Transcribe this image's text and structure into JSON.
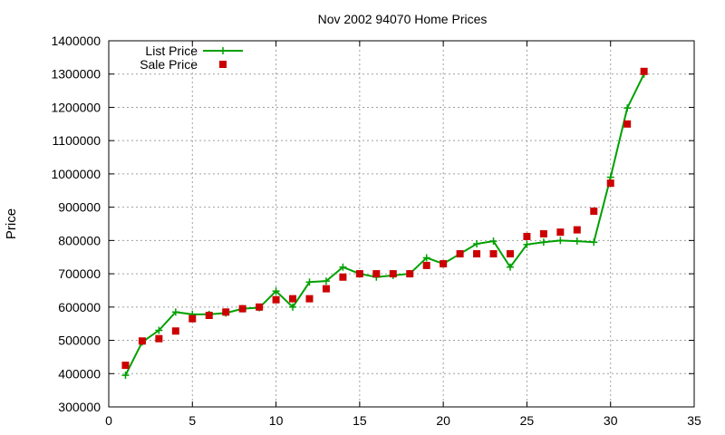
{
  "chart_data": {
    "type": "line",
    "title": "Nov 2002 94070 Home Prices",
    "xlabel": "",
    "ylabel": "Price",
    "xlim": [
      0,
      35
    ],
    "ylim": [
      300000,
      1400000
    ],
    "x_ticks": [
      0,
      5,
      10,
      15,
      20,
      25,
      30,
      35
    ],
    "y_ticks": [
      300000,
      400000,
      500000,
      600000,
      700000,
      800000,
      900000,
      1000000,
      1100000,
      1200000,
      1300000,
      1400000
    ],
    "grid": true,
    "legend_position": "top-left",
    "series": [
      {
        "name": "List Price",
        "style": "line-with-plus-markers",
        "color": "#00a000",
        "points": [
          [
            1,
            395000
          ],
          [
            2,
            495000
          ],
          [
            3,
            530000
          ],
          [
            4,
            585000
          ],
          [
            5,
            578000
          ],
          [
            6,
            578000
          ],
          [
            7,
            582000
          ],
          [
            8,
            595000
          ],
          [
            9,
            598000
          ],
          [
            10,
            648000
          ],
          [
            11,
            600000
          ],
          [
            12,
            675000
          ],
          [
            13,
            678000
          ],
          [
            14,
            720000
          ],
          [
            15,
            700000
          ],
          [
            16,
            690000
          ],
          [
            17,
            695000
          ],
          [
            18,
            700000
          ],
          [
            19,
            748000
          ],
          [
            20,
            730000
          ],
          [
            21,
            760000
          ],
          [
            22,
            790000
          ],
          [
            23,
            798000
          ],
          [
            24,
            720000
          ],
          [
            25,
            788000
          ],
          [
            26,
            795000
          ],
          [
            27,
            800000
          ],
          [
            28,
            798000
          ],
          [
            29,
            795000
          ],
          [
            30,
            990000
          ],
          [
            31,
            1198000
          ],
          [
            32,
            1300000
          ]
        ]
      },
      {
        "name": "Sale Price",
        "style": "square-markers",
        "color": "#cc0000",
        "points": [
          [
            1,
            425000
          ],
          [
            2,
            498000
          ],
          [
            3,
            505000
          ],
          [
            4,
            528000
          ],
          [
            5,
            565000
          ],
          [
            6,
            575000
          ],
          [
            7,
            585000
          ],
          [
            8,
            595000
          ],
          [
            9,
            600000
          ],
          [
            10,
            622000
          ],
          [
            11,
            625000
          ],
          [
            12,
            625000
          ],
          [
            13,
            655000
          ],
          [
            14,
            690000
          ],
          [
            15,
            700000
          ],
          [
            16,
            700000
          ],
          [
            17,
            700000
          ],
          [
            18,
            700000
          ],
          [
            19,
            725000
          ],
          [
            20,
            730000
          ],
          [
            21,
            760000
          ],
          [
            22,
            760000
          ],
          [
            23,
            760000
          ],
          [
            24,
            760000
          ],
          [
            25,
            812000
          ],
          [
            26,
            820000
          ],
          [
            27,
            825000
          ],
          [
            28,
            832000
          ],
          [
            29,
            888000
          ],
          [
            30,
            972000
          ],
          [
            31,
            1150000
          ],
          [
            32,
            1308000
          ]
        ]
      }
    ]
  }
}
